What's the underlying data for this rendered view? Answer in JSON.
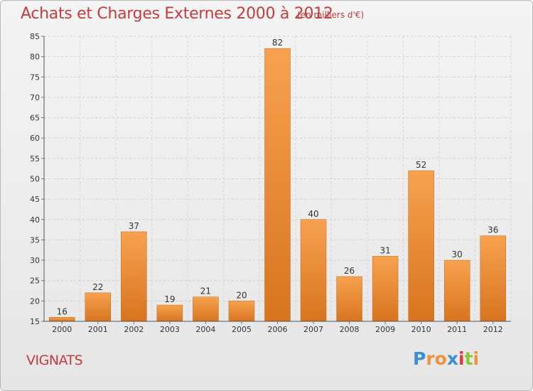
{
  "chart_data": {
    "type": "bar",
    "title": "Achats et Charges Externes 2000 à 2012",
    "subtitle": "(en milliers d'€)",
    "categories": [
      "2000",
      "2001",
      "2002",
      "2003",
      "2004",
      "2005",
      "2006",
      "2007",
      "2008",
      "2009",
      "2010",
      "2011",
      "2012"
    ],
    "values": [
      16,
      22,
      37,
      19,
      21,
      20,
      82,
      40,
      26,
      31,
      52,
      30,
      36
    ],
    "ylim": [
      15,
      85
    ],
    "yticks": [
      15,
      20,
      25,
      30,
      35,
      40,
      45,
      50,
      55,
      60,
      65,
      70,
      75,
      80,
      85
    ],
    "xlabel": "",
    "ylabel": "",
    "grid": true,
    "bar_color": "#f0923a"
  },
  "commune": "VIGNATS",
  "logo": {
    "letters": [
      "P",
      "r",
      "o",
      "x",
      "i",
      "t",
      "i"
    ],
    "colors": [
      "#3a8fd4",
      "#f0923a",
      "#f0923a",
      "#3a8fd4",
      "#e03b3b",
      "#8cc63f",
      "#f0923a"
    ]
  }
}
